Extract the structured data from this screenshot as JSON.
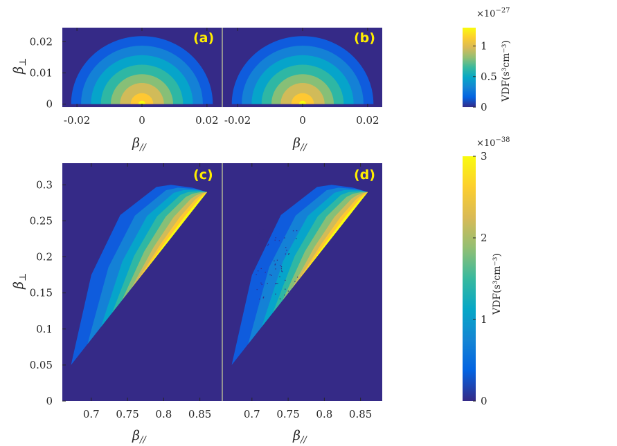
{
  "colors": {
    "background": "#352a87",
    "panel_label": "#ffee00",
    "parula": [
      "#352a87",
      "#0f5cdd",
      "#1481d6",
      "#06a4ca",
      "#2eb7a4",
      "#87bf77",
      "#d1bb59",
      "#fec832",
      "#f9fb0e"
    ]
  },
  "chart_data": [
    {
      "type": "heatmap",
      "panel": "a",
      "panel_label": "(a)",
      "shape": "half-disk contour (Maxwellian)",
      "center": [
        0,
        0
      ],
      "contour_levels_fraction": [
        0.1,
        0.25,
        0.4,
        0.55,
        0.7,
        0.85,
        0.95
      ],
      "outer_radius": 0.0218,
      "xlim": [
        -0.0245,
        0.0245
      ],
      "ylim": [
        -0.001,
        0.0245
      ],
      "xticks": [
        "-0.02",
        "0",
        "0.02"
      ],
      "yticks": [
        "0",
        "0.01",
        "0.02"
      ],
      "xlabel": "β//",
      "ylabel": "β⊥"
    },
    {
      "type": "heatmap",
      "panel": "b",
      "panel_label": "(b)",
      "shape": "half-disk contour (Maxwellian)",
      "center": [
        0,
        0
      ],
      "contour_levels_fraction": [
        0.1,
        0.25,
        0.4,
        0.55,
        0.7,
        0.85,
        0.95
      ],
      "outer_radius": 0.0218,
      "xlim": [
        -0.0245,
        0.0245
      ],
      "ylim": [
        -0.001,
        0.0245
      ],
      "xticks": [
        "-0.02",
        "0",
        "0.02"
      ],
      "xlabel": "β//"
    },
    {
      "type": "heatmap",
      "panel": "c",
      "panel_label": "(c)",
      "shape": "boosted distribution wedge",
      "boundary_points": [
        [
          0.672,
          0.05
        ],
        [
          0.7,
          0.175
        ],
        [
          0.74,
          0.258
        ],
        [
          0.79,
          0.297
        ],
        [
          0.81,
          0.3
        ],
        [
          0.84,
          0.296
        ],
        [
          0.86,
          0.29
        ]
      ],
      "xlim": [
        0.66,
        0.88
      ],
      "ylim": [
        0,
        0.33
      ],
      "xticks": [
        "0.7",
        "0.75",
        "0.8",
        "0.85"
      ],
      "yticks": [
        "0",
        "0.05",
        "0.1",
        "0.15",
        "0.2",
        "0.25",
        "0.3"
      ],
      "xlabel": "β//",
      "ylabel": "β⊥"
    },
    {
      "type": "heatmap",
      "panel": "d",
      "panel_label": "(d)",
      "shape": "boosted distribution wedge with sparse noise",
      "boundary_points": [
        [
          0.672,
          0.05
        ],
        [
          0.7,
          0.175
        ],
        [
          0.74,
          0.258
        ],
        [
          0.79,
          0.297
        ],
        [
          0.81,
          0.3
        ],
        [
          0.84,
          0.296
        ],
        [
          0.86,
          0.29
        ]
      ],
      "xlim": [
        0.66,
        0.88
      ],
      "ylim": [
        0,
        0.33
      ],
      "xticks": [
        "0.7",
        "0.75",
        "0.8",
        "0.85"
      ],
      "xlabel": "β//"
    }
  ],
  "colorbars": [
    {
      "label": "VDF(s³cm⁻³)",
      "exponent_base": "×10",
      "exponent": "−27",
      "ticks": [
        "0",
        "0.5",
        "1"
      ],
      "tick_values": [
        0,
        0.5,
        1
      ],
      "range": [
        0,
        1.3
      ]
    },
    {
      "label": "VDF(s³cm⁻³)",
      "exponent_base": "×10",
      "exponent": "−38",
      "ticks": [
        "0",
        "1",
        "2",
        "3"
      ],
      "tick_values": [
        0,
        1,
        2,
        3
      ],
      "range": [
        0,
        3
      ]
    }
  ]
}
